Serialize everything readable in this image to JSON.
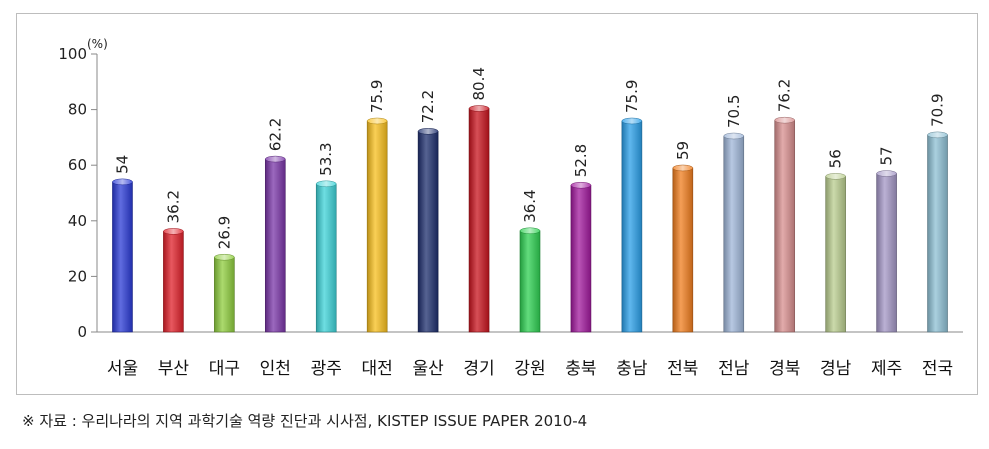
{
  "chart_data": {
    "type": "bar",
    "categories": [
      "서울",
      "부산",
      "대구",
      "인천",
      "광주",
      "대전",
      "울산",
      "경기",
      "강원",
      "충북",
      "충남",
      "전북",
      "전남",
      "경북",
      "경남",
      "제주",
      "전국"
    ],
    "values": [
      54,
      36.2,
      26.9,
      62.2,
      53.3,
      75.9,
      72.2,
      80.4,
      36.4,
      52.8,
      75.9,
      59,
      70.5,
      76.2,
      56,
      57,
      70.9
    ],
    "value_labels": [
      "54",
      "36.2",
      "26.9",
      "62.2",
      "53.3",
      "75.9",
      "72.2",
      "80.4",
      "36.4",
      "52.8",
      "75.9",
      "59",
      "70.5",
      "76.2",
      "56",
      "57",
      "70.9"
    ],
    "colors": [
      "#2b3bd6",
      "#e0202a",
      "#8fcd3e",
      "#7a36a8",
      "#3ed3d8",
      "#f8bf1e",
      "#1e2f6e",
      "#c8141e",
      "#2ed052",
      "#a1199e",
      "#2a9fe8",
      "#f07d1e",
      "#9fb6d8",
      "#d88f8f",
      "#b9cd8f",
      "#a497c6",
      "#8ec0d4"
    ],
    "y_unit": "(%)",
    "ylim": [
      0,
      100
    ],
    "yticks": [
      "0",
      "20",
      "40",
      "60",
      "80",
      "100"
    ],
    "grid": false,
    "legend": "none"
  },
  "source_note": "※ 자료 : 우리나라의 지역 과학기술 역량 진단과 시사점, KISTEP ISSUE PAPER 2010-4"
}
